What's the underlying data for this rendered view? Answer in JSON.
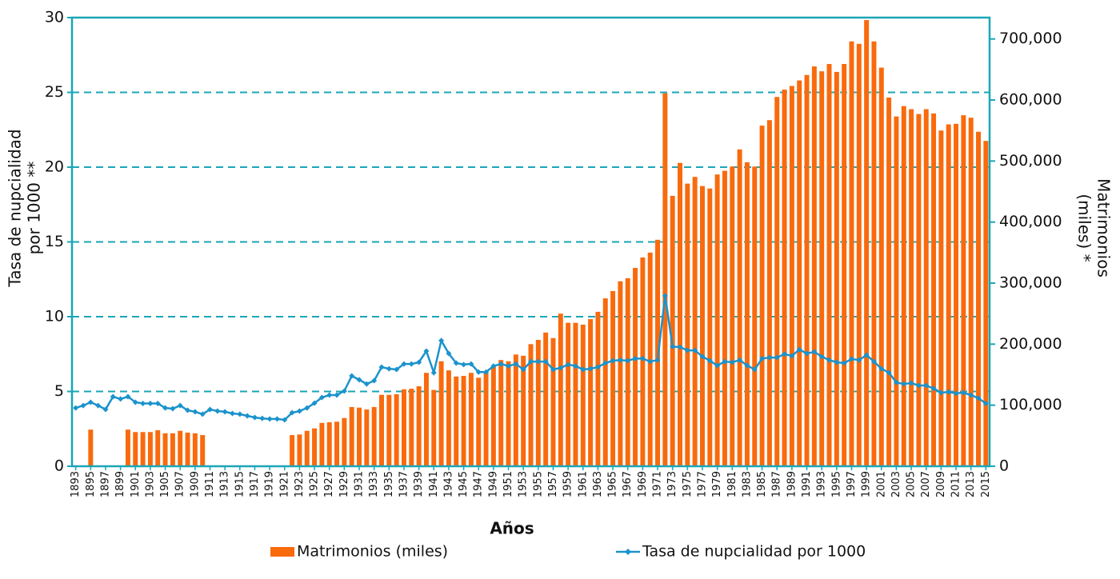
{
  "chart_data": {
    "type": "bar",
    "ylabel": [
      "Tasa de nupcialidad",
      "por 1000 **"
    ],
    "y2label": [
      "Matrimonios",
      "(miles) *"
    ],
    "xlabel": "Años",
    "categories": [
      "1893",
      null,
      "1895",
      null,
      "1897",
      null,
      "1899",
      null,
      "1901",
      null,
      "1903",
      null,
      "1905",
      null,
      "1907",
      null,
      "1909",
      null,
      "1911",
      null,
      "1913",
      null,
      "1915",
      null,
      "1917",
      null,
      "1919",
      null,
      "1921",
      null,
      "1923",
      null,
      "1925",
      null,
      "1927",
      null,
      "1929",
      null,
      "1931",
      null,
      "1933",
      null,
      "1935",
      null,
      "1937",
      null,
      "1939",
      null,
      "1941",
      null,
      "1943",
      null,
      "1945",
      null,
      "1947",
      null,
      "1949",
      null,
      "1951",
      null,
      "1953",
      null,
      "1955",
      null,
      "1957",
      null,
      "1959",
      null,
      "1961",
      null,
      "1963",
      null,
      "1965",
      null,
      "1967",
      null,
      "1969",
      null,
      "1971",
      null,
      "1973",
      null,
      "1975",
      null,
      "1977",
      null,
      "1979",
      null,
      "1981",
      null,
      "1983",
      null,
      "1985",
      null,
      "1987",
      null,
      "1989",
      null,
      "1991",
      null,
      "1993",
      null,
      "1995",
      null,
      "1997",
      null,
      "1999",
      null,
      "2001",
      null,
      "2003",
      null,
      "2005",
      null,
      "2007",
      null,
      "2009",
      null,
      "2011",
      null,
      "2013",
      null,
      "2015"
    ],
    "series": [
      {
        "name": "Matrimonios (miles)",
        "type": "bar",
        "axis": "y2",
        "color": "#f96a0d",
        "values": [
          null,
          null,
          60000,
          null,
          null,
          null,
          null,
          60000,
          56000,
          56000,
          56000,
          59000,
          54000,
          54000,
          58000,
          55000,
          54000,
          51000,
          null,
          null,
          null,
          null,
          null,
          null,
          null,
          null,
          null,
          null,
          null,
          51000,
          52000,
          58000,
          62000,
          71000,
          72000,
          73000,
          79000,
          97000,
          96000,
          93000,
          97000,
          117000,
          117000,
          118000,
          126000,
          127000,
          131000,
          153000,
          125000,
          172000,
          157000,
          147000,
          148000,
          153000,
          145000,
          153000,
          164000,
          174000,
          172000,
          183000,
          181000,
          200000,
          207000,
          219000,
          210000,
          250000,
          235000,
          235000,
          232000,
          241000,
          253000,
          275000,
          287000,
          303000,
          308000,
          325000,
          342000,
          350000,
          371000,
          611000,
          443000,
          497000,
          463000,
          474000,
          459000,
          455000,
          478000,
          484000,
          491000,
          519000,
          498000,
          491000,
          558000,
          567000,
          605000,
          617000,
          623000,
          632000,
          641000,
          655000,
          647000,
          659000,
          646000,
          659000,
          696000,
          692000,
          731000,
          696000,
          653000,
          604000,
          573000,
          590000,
          585000,
          577000,
          585000,
          578000,
          550000,
          560000,
          561000,
          575000,
          571000,
          548000,
          533000
        ]
      },
      {
        "name": "Tasa de nupcialidad por 1000",
        "type": "line",
        "color": "#1b93cc",
        "values": [
          3.9,
          4.06,
          4.28,
          4.06,
          3.8,
          4.65,
          4.5,
          4.65,
          4.28,
          4.2,
          4.2,
          4.2,
          3.9,
          3.85,
          4.06,
          3.74,
          3.64,
          3.48,
          3.8,
          3.69,
          3.64,
          3.53,
          3.48,
          3.37,
          3.26,
          3.2,
          3.16,
          3.16,
          3.1,
          3.58,
          3.69,
          3.9,
          4.22,
          4.6,
          4.76,
          4.76,
          5.03,
          6.04,
          5.78,
          5.5,
          5.72,
          6.63,
          6.52,
          6.47,
          6.84,
          6.84,
          6.95,
          7.7,
          6.26,
          8.4,
          7.54,
          6.9,
          6.8,
          6.84,
          6.3,
          6.3,
          6.7,
          6.84,
          6.7,
          6.84,
          6.47,
          7.0,
          7.0,
          7.0,
          6.47,
          6.58,
          6.8,
          6.7,
          6.47,
          6.52,
          6.63,
          6.9,
          7.06,
          7.1,
          7.06,
          7.2,
          7.2,
          7.0,
          7.1,
          11.4,
          8.0,
          7.97,
          7.75,
          7.75,
          7.33,
          7.06,
          6.74,
          7.0,
          6.95,
          7.1,
          6.74,
          6.47,
          7.2,
          7.27,
          7.27,
          7.5,
          7.38,
          7.8,
          7.54,
          7.65,
          7.33,
          7.1,
          6.95,
          6.9,
          7.17,
          7.1,
          7.43,
          7.0,
          6.52,
          6.26,
          5.6,
          5.5,
          5.56,
          5.4,
          5.4,
          5.2,
          4.92,
          4.97,
          4.87,
          4.92,
          4.76,
          4.55,
          4.2
        ]
      }
    ],
    "ylim": [
      0,
      30
    ],
    "yticks": [
      0,
      5,
      10,
      15,
      20,
      25,
      30
    ],
    "y2lim": [
      0,
      735000
    ],
    "y2ticks": [
      0,
      {
        "value": 100000,
        "label": "100,000"
      },
      {
        "value": 200000,
        "label": "200,000"
      },
      {
        "value": 300000,
        "label": "300,000"
      },
      {
        "value": 400000,
        "label": "400,000"
      },
      {
        "value": 500000,
        "label": "500,000"
      },
      {
        "value": 600000,
        "label": "600,000"
      },
      {
        "value": 700000,
        "label": "700,000"
      }
    ],
    "grid": true,
    "axis_color": "#1aa6b7",
    "legend": "bottom"
  }
}
